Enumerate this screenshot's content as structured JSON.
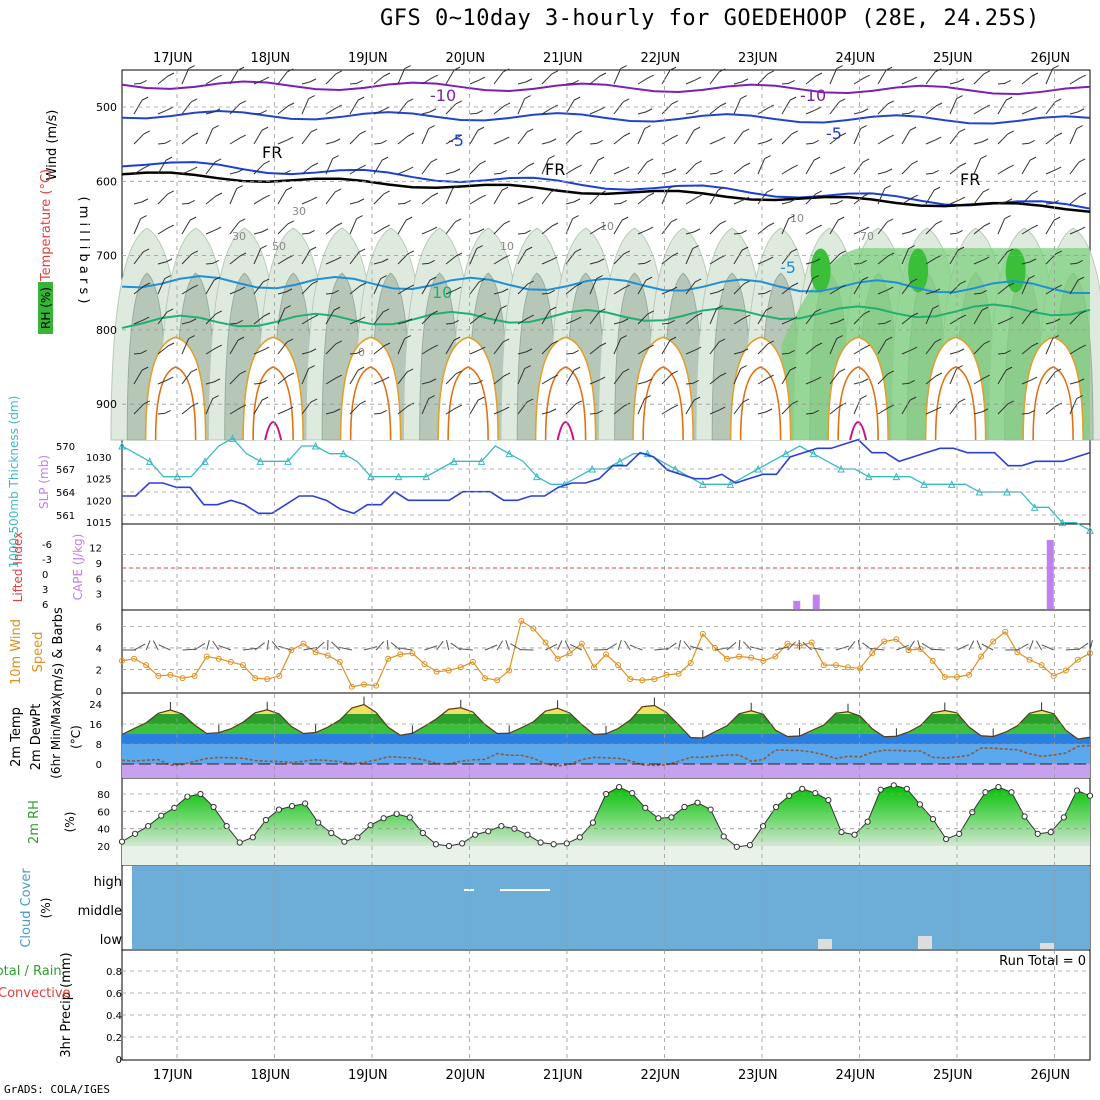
{
  "title": "GFS 0~10day 3-hourly for GOEDEHOOP (28E, 24.25S)",
  "credit": "GrADS: COLA/IGES",
  "dates": [
    "17JUN",
    "18JUN",
    "19JUN",
    "20JUN",
    "21JUN",
    "22JUN",
    "23JUN",
    "24JUN",
    "25JUN",
    "26JUN"
  ],
  "run_total": "Run Total = 0",
  "colors": {
    "temp_line": "#2a3fd8",
    "thickness": "#3bbac4",
    "rh": "#30c030",
    "wind": "#e09020",
    "cape": "#c080f0",
    "li": "#e04040"
  },
  "chart_data": [
    {
      "type": "heatmap",
      "panel": "upper-air",
      "ylabels": {
        "wind": "Wind (m/s)",
        "temp": "Temperature (°C)",
        "rh": "RH (%)",
        "units": "( m i l l i b a r s )"
      },
      "yticks": [
        500,
        600,
        700,
        800,
        900
      ],
      "contour_labels": {
        "temp": [
          "-10",
          "-10",
          "-5",
          "-5",
          "FR",
          "FR",
          "FR",
          "-5",
          "10"
        ],
        "rh": [
          "30",
          "50",
          "10",
          "10",
          "30",
          "10",
          "70"
        ],
        "other": [
          "0"
        ]
      }
    },
    {
      "type": "line",
      "panel": "slp-thickness",
      "ylabel_left": "1000-500mb Thickness (dm)",
      "ylabel_right": "SLP (mb)",
      "left_ticks": [
        570,
        567,
        564,
        561
      ],
      "right_ticks": [
        1030,
        1025,
        1020,
        1015
      ],
      "series": [
        {
          "axis": "left",
          "values": [
            570,
            569,
            568,
            566,
            566,
            566,
            568,
            570,
            571,
            569,
            568,
            568,
            568,
            570,
            570,
            569,
            569,
            568,
            566,
            566,
            566,
            566,
            566,
            567,
            568,
            568,
            568,
            570,
            569,
            568,
            566,
            565,
            565,
            566,
            567,
            567,
            568,
            569,
            569,
            568,
            567,
            566,
            565,
            565,
            565,
            566,
            567,
            568,
            569,
            570,
            569,
            568,
            567,
            567,
            566,
            566,
            566,
            566,
            565,
            565,
            565,
            565,
            564,
            564,
            564,
            564,
            562,
            562,
            560,
            560,
            559
          ]
        },
        {
          "axis": "right",
          "values": [
            1021,
            1021,
            1024,
            1024,
            1023,
            1023,
            1019,
            1019,
            1020,
            1019,
            1017,
            1017,
            1019,
            1021,
            1021,
            1020,
            1018,
            1017,
            1019,
            1019,
            1022,
            1020,
            1020,
            1020,
            1020,
            1022,
            1022,
            1022,
            1020,
            1020,
            1021,
            1021,
            1023,
            1024,
            1024,
            1025,
            1028,
            1028,
            1031,
            1030,
            1027,
            1026,
            1025,
            1025,
            1026,
            1024,
            1025,
            1026,
            1026,
            1030,
            1031,
            1032,
            1032,
            1033,
            1034,
            1031,
            1031,
            1029,
            1030,
            1031,
            1032,
            1032,
            1031,
            1031,
            1031,
            1028,
            1028,
            1029,
            1029,
            1029,
            1030,
            1031
          ]
        }
      ]
    },
    {
      "type": "bar",
      "panel": "cape-li",
      "ylabel_left": "Lifted Index",
      "ylabel_right": "CAPE (J/kg)",
      "left_ticks": [
        "-6",
        "-3",
        "0",
        "3",
        "6"
      ],
      "right_ticks": [
        12,
        9,
        6,
        3
      ],
      "bars": [
        {
          "day": 6.3,
          "value": 1.6
        },
        {
          "day": 6.5,
          "value": 2.8
        },
        {
          "day": 8.9,
          "value": 13.5
        }
      ]
    },
    {
      "type": "line",
      "panel": "wind10m",
      "ylabel": "10m Wind Speed (m/s) & Barbs",
      "yticks": [
        6,
        4,
        2,
        0
      ],
      "values": [
        2.8,
        3,
        2.4,
        1.4,
        1.5,
        1.2,
        1.4,
        3.2,
        3,
        2.7,
        2.4,
        1.2,
        1.1,
        1.4,
        3.8,
        4.4,
        3.6,
        3.3,
        2.7,
        0.4,
        0.6,
        0.5,
        3,
        3.4,
        3.5,
        2.5,
        1.8,
        1.9,
        2.2,
        2.7,
        1.2,
        1,
        1.9,
        6.5,
        5.8,
        4.5,
        3,
        3.5,
        4.4,
        2.2,
        3.4,
        2.4,
        1.1,
        1,
        1.1,
        1.5,
        1.6,
        2.6,
        5.3,
        4,
        3,
        3.2,
        3.1,
        2.8,
        3.2,
        4.4,
        4.2,
        4.5,
        2.4,
        2.4,
        2.2,
        2.1,
        3.5,
        4.6,
        4.8,
        3.8,
        3.9,
        2.8,
        1.3,
        1.3,
        1.5,
        3.2,
        4.6,
        5.5,
        3.6,
        2.9,
        2.4,
        1.4,
        1.9,
        2.9,
        3.5
      ]
    },
    {
      "type": "area",
      "panel": "temperature",
      "ylabel": "2m Temp 2m DewPt (6hr Min/Max) (°C)",
      "yticks": [
        24,
        16,
        8,
        0
      ],
      "temp": [
        11.8,
        14.2,
        16.5,
        20.3,
        21.6,
        20,
        15.6,
        12.2,
        12.5,
        14.1,
        16.7,
        20.5,
        21.7,
        20,
        15,
        12.2,
        12.6,
        14.7,
        17.6,
        22.4,
        23.8,
        20.6,
        14.7,
        11.5,
        12.3,
        15.1,
        18.1,
        21.9,
        22.5,
        20.8,
        15.8,
        12.2,
        12.3,
        14.5,
        16.9,
        21.2,
        22.3,
        20.4,
        15.8,
        11.8,
        12.1,
        14.2,
        17.6,
        22.9,
        23.4,
        20.6,
        15.7,
        10.6,
        10.4,
        12.9,
        15.3,
        20.1,
        21.3,
        19.9,
        13.6,
        11,
        11.2,
        13.4,
        15.6,
        20.3,
        20.9,
        19.2,
        14.1,
        10.9,
        11.1,
        12.8,
        15.4,
        20.5,
        21.4,
        20.5,
        14.8,
        11.3,
        11,
        12.7,
        15.3,
        20.3,
        21.5,
        20.1,
        13.5,
        10,
        10.7
      ],
      "dewpoint": [
        1.5,
        1.2,
        1.5,
        1.8,
        -0.5,
        -0.2,
        1.1,
        2.2,
        2.6,
        2.5,
        2.3,
        1.4,
        1.1,
        1,
        0.6,
        1.1,
        1.7,
        1.4,
        1,
        0.1,
        0.6,
        1.6,
        2.9,
        2.7,
        2.4,
        1.6,
        0.2,
        0,
        1.1,
        1.7,
        1.8,
        4.2,
        3.5,
        3.5,
        2.3,
        0.1,
        -0.8,
        -0.1,
        1.7,
        2.7,
        2.5,
        2.3,
        1.3,
        -0.3,
        -0.6,
        -0.3,
        1.1,
        2.7,
        2.7,
        3.2,
        3.6,
        3.6,
        1.1,
        1.8,
        5.6,
        5.5,
        5.4,
        4.8,
        3.7,
        2.2,
        3.1,
        2.8,
        4.7,
        5.5,
        5.4,
        5.2,
        5.2,
        2.7,
        2.4,
        2.8,
        3.5,
        6.4,
        6.3,
        6,
        5.7,
        4.1,
        3.1,
        3.6,
        4.4,
        7,
        7.4
      ]
    },
    {
      "type": "area",
      "panel": "rh2m",
      "ylabel": "2m RH (%)",
      "yticks": [
        80,
        60,
        40,
        20
      ],
      "values": [
        25,
        34,
        43,
        55,
        64,
        77,
        80,
        65,
        43,
        24,
        30,
        50,
        62,
        66,
        69,
        47,
        35,
        25,
        30,
        44,
        52,
        57,
        53,
        35,
        22,
        20,
        23,
        33,
        37,
        43,
        40,
        33,
        24,
        22,
        23,
        30,
        47,
        80,
        88,
        81,
        64,
        52,
        53,
        65,
        70,
        62,
        31,
        19,
        21,
        43,
        65,
        78,
        86,
        81,
        73,
        36,
        33,
        48,
        85,
        90,
        86,
        68,
        51,
        28,
        34,
        59,
        82,
        88,
        82,
        54,
        34,
        36,
        53,
        84,
        78
      ]
    },
    {
      "type": "table",
      "panel": "cloud-cover",
      "ylabel": "Cloud Cover (%)",
      "rows": [
        "high",
        "middle",
        "low"
      ]
    },
    {
      "type": "bar",
      "panel": "precip",
      "ylabel": "3hr Precip (mm)",
      "legend": "Total / Rain",
      "legend2": "Convective",
      "yticks": [
        "0.8",
        "0.6",
        "0.4",
        "0.2",
        "0"
      ],
      "values": []
    }
  ]
}
